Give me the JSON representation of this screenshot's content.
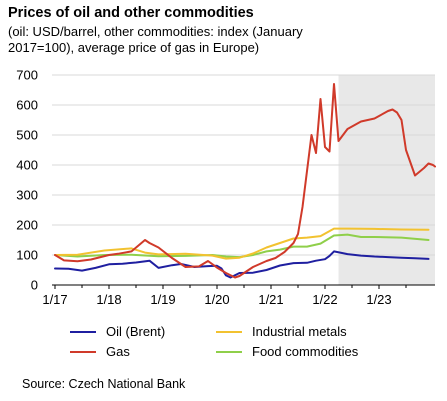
{
  "title": "Prices of oil and other commodities",
  "subtitle": "(oil: USD/barrel, other commodities: index (January 2017=100), average price of gas in Europe)",
  "source": "Source: Czech National Bank",
  "chart_data": {
    "type": "line",
    "x_axis": {
      "type": "date",
      "min": "2017-01",
      "max": "2023-12",
      "tick_labels": [
        "1/17",
        "1/18",
        "1/19",
        "1/20",
        "1/21",
        "1/22",
        "1/23"
      ]
    },
    "y_axis": {
      "min": 0,
      "max": 700,
      "ticks": [
        0,
        100,
        200,
        300,
        400,
        500,
        600,
        700
      ]
    },
    "grid": "horizontal",
    "forecast_shading": {
      "from": "2022-04",
      "to": "2023-12",
      "color": "#e8e8e8"
    },
    "legend_position": "bottom",
    "series": [
      {
        "name": "Oil (Brent)",
        "color": "#1f1fa0",
        "points": [
          [
            "2017-01",
            55
          ],
          [
            "2017-04",
            54
          ],
          [
            "2017-07",
            48
          ],
          [
            "2017-10",
            57
          ],
          [
            "2018-01",
            69
          ],
          [
            "2018-04",
            71
          ],
          [
            "2018-07",
            75
          ],
          [
            "2018-10",
            81
          ],
          [
            "2018-12",
            57
          ],
          [
            "2019-03",
            66
          ],
          [
            "2019-05",
            70
          ],
          [
            "2019-08",
            60
          ],
          [
            "2019-11",
            63
          ],
          [
            "2020-01",
            64
          ],
          [
            "2020-02",
            55
          ],
          [
            "2020-03",
            32
          ],
          [
            "2020-04",
            25
          ],
          [
            "2020-06",
            40
          ],
          [
            "2020-09",
            41
          ],
          [
            "2020-12",
            50
          ],
          [
            "2021-03",
            65
          ],
          [
            "2021-06",
            73
          ],
          [
            "2021-09",
            74
          ],
          [
            "2021-11",
            81
          ],
          [
            "2022-01",
            86
          ],
          [
            "2022-02",
            97
          ],
          [
            "2022-03",
            112
          ],
          [
            "2022-06",
            103
          ],
          [
            "2022-09",
            98
          ],
          [
            "2022-12",
            95
          ],
          [
            "2023-03",
            93
          ],
          [
            "2023-06",
            91
          ],
          [
            "2023-09",
            89
          ],
          [
            "2023-12",
            87
          ]
        ]
      },
      {
        "name": "Gas",
        "color": "#d03a2a",
        "points": [
          [
            "2017-01",
            100
          ],
          [
            "2017-03",
            82
          ],
          [
            "2017-06",
            79
          ],
          [
            "2017-09",
            85
          ],
          [
            "2018-01",
            100
          ],
          [
            "2018-03",
            104
          ],
          [
            "2018-06",
            112
          ],
          [
            "2018-09",
            150
          ],
          [
            "2018-10",
            140
          ],
          [
            "2018-12",
            125
          ],
          [
            "2019-03",
            90
          ],
          [
            "2019-06",
            60
          ],
          [
            "2019-09",
            62
          ],
          [
            "2019-11",
            80
          ],
          [
            "2020-01",
            58
          ],
          [
            "2020-03",
            40
          ],
          [
            "2020-05",
            25
          ],
          [
            "2020-06",
            30
          ],
          [
            "2020-09",
            60
          ],
          [
            "2020-12",
            80
          ],
          [
            "2021-02",
            90
          ],
          [
            "2021-04",
            110
          ],
          [
            "2021-06",
            140
          ],
          [
            "2021-07",
            170
          ],
          [
            "2021-08",
            260
          ],
          [
            "2021-09",
            380
          ],
          [
            "2021-10",
            500
          ],
          [
            "2021-11",
            440
          ],
          [
            "2021-12",
            620
          ],
          [
            "2022-01",
            460
          ],
          [
            "2022-02",
            445
          ],
          [
            "2022-03",
            670
          ],
          [
            "2022-04",
            480
          ],
          [
            "2022-06",
            520
          ],
          [
            "2022-09",
            545
          ],
          [
            "2022-12",
            555
          ],
          [
            "2023-03",
            580
          ],
          [
            "2023-04",
            585
          ],
          [
            "2023-05",
            575
          ],
          [
            "2023-06",
            550
          ],
          [
            "2023-07",
            450
          ],
          [
            "2023-09",
            365
          ],
          [
            "2023-11",
            390
          ],
          [
            "2023-12",
            405
          ],
          [
            "2024-01",
            400
          ],
          [
            "2024-02",
            395
          ]
        ]
      },
      {
        "name": "Industrial metals",
        "color": "#f2c230",
        "points": [
          [
            "2017-01",
            100
          ],
          [
            "2017-06",
            101
          ],
          [
            "2017-12",
            115
          ],
          [
            "2018-06",
            122
          ],
          [
            "2018-09",
            108
          ],
          [
            "2018-12",
            102
          ],
          [
            "2019-06",
            104
          ],
          [
            "2019-12",
            98
          ],
          [
            "2020-03",
            88
          ],
          [
            "2020-06",
            91
          ],
          [
            "2020-09",
            105
          ],
          [
            "2020-12",
            125
          ],
          [
            "2021-03",
            140
          ],
          [
            "2021-06",
            155
          ],
          [
            "2021-09",
            158
          ],
          [
            "2021-12",
            163
          ],
          [
            "2022-03",
            188
          ],
          [
            "2022-06",
            188
          ],
          [
            "2022-12",
            187
          ],
          [
            "2023-06",
            185
          ],
          [
            "2023-12",
            184
          ]
        ]
      },
      {
        "name": "Food commodities",
        "color": "#8fcf4a",
        "points": [
          [
            "2017-01",
            100
          ],
          [
            "2017-06",
            95
          ],
          [
            "2017-12",
            100
          ],
          [
            "2018-06",
            101
          ],
          [
            "2018-12",
            96
          ],
          [
            "2019-06",
            97
          ],
          [
            "2019-12",
            100
          ],
          [
            "2020-03",
            95
          ],
          [
            "2020-06",
            93
          ],
          [
            "2020-09",
            100
          ],
          [
            "2020-12",
            112
          ],
          [
            "2021-03",
            118
          ],
          [
            "2021-06",
            128
          ],
          [
            "2021-09",
            128
          ],
          [
            "2021-12",
            138
          ],
          [
            "2022-03",
            165
          ],
          [
            "2022-06",
            168
          ],
          [
            "2022-09",
            160
          ],
          [
            "2022-12",
            160
          ],
          [
            "2023-06",
            158
          ],
          [
            "2023-12",
            150
          ]
        ]
      }
    ]
  }
}
